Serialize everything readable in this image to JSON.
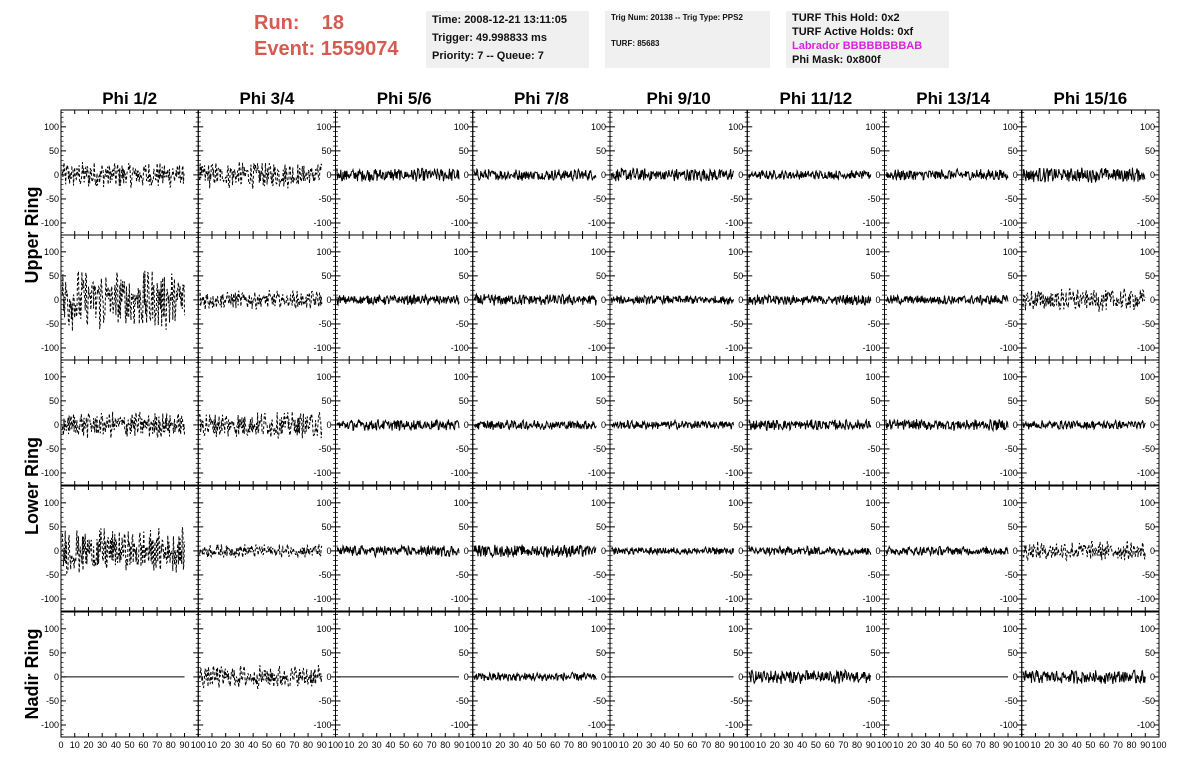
{
  "header": {
    "run_label": "Run:",
    "run_value": "18",
    "event_label": "Event:",
    "event_value": "1559074",
    "time": "Time: 2008-12-21 13:11:05",
    "trigger": "Trigger: 49.998833 ms",
    "priority": "Priority: 7 -- Queue: 7",
    "trig_num": "Trig Num: 20138 -- Trig Type: PPS2",
    "turf": "TURF: 85683",
    "turf_hold": "TURF This Hold: 0x2",
    "turf_active": "TURF Active Holds: 0xf",
    "labrador": "Labrador BBBBBBBBAB",
    "phi_mask": "Phi Mask: 0x800f",
    "labrador_color": "#e020e0",
    "run_color": "#d55b50"
  },
  "chart_data": {
    "type": "line",
    "columns": [
      "Phi 1/2",
      "Phi 3/4",
      "Phi 5/6",
      "Phi 7/8",
      "Phi 9/10",
      "Phi 11/12",
      "Phi 13/14",
      "Phi 15/16"
    ],
    "rows": [
      "Upper Ring",
      "Upper Ring",
      "Lower Ring",
      "Lower Ring",
      "Nadir Ring"
    ],
    "ring_labels": [
      "Upper Ring",
      "Lower Ring",
      "Nadir Ring"
    ],
    "xlim": [
      0,
      100
    ],
    "ylim": [
      -125,
      135
    ],
    "x_ticks": [
      0,
      10,
      20,
      30,
      40,
      50,
      60,
      70,
      80,
      90,
      100
    ],
    "y_ticks": [
      -100,
      -50,
      0,
      50,
      100
    ],
    "panels": [
      [
        {
          "amp": 35,
          "style": "dashed"
        },
        {
          "amp": 35,
          "style": "dashed"
        },
        {
          "amp": 18,
          "style": "solid"
        },
        {
          "amp": 15,
          "style": "solid"
        },
        {
          "amp": 18,
          "style": "solid"
        },
        {
          "amp": 12,
          "style": "solid"
        },
        {
          "amp": 15,
          "style": "solid"
        },
        {
          "amp": 20,
          "style": "solid"
        }
      ],
      [
        {
          "amp": 80,
          "style": "dashed"
        },
        {
          "amp": 25,
          "style": "dashed"
        },
        {
          "amp": 13,
          "style": "solid"
        },
        {
          "amp": 15,
          "style": "solid"
        },
        {
          "amp": 12,
          "style": "solid"
        },
        {
          "amp": 14,
          "style": "solid"
        },
        {
          "amp": 13,
          "style": "solid"
        },
        {
          "amp": 30,
          "style": "dashed"
        }
      ],
      [
        {
          "amp": 35,
          "style": "dashed"
        },
        {
          "amp": 35,
          "style": "dashed"
        },
        {
          "amp": 15,
          "style": "solid"
        },
        {
          "amp": 13,
          "style": "solid"
        },
        {
          "amp": 12,
          "style": "solid"
        },
        {
          "amp": 14,
          "style": "solid"
        },
        {
          "amp": 15,
          "style": "solid"
        },
        {
          "amp": 12,
          "style": "solid"
        }
      ],
      [
        {
          "amp": 60,
          "style": "dashed"
        },
        {
          "amp": 18,
          "style": "dashed"
        },
        {
          "amp": 15,
          "style": "solid"
        },
        {
          "amp": 17,
          "style": "solid"
        },
        {
          "amp": 10,
          "style": "solid"
        },
        {
          "amp": 12,
          "style": "solid"
        },
        {
          "amp": 12,
          "style": "solid"
        },
        {
          "amp": 25,
          "style": "dashed"
        }
      ],
      [
        {
          "amp": 0,
          "style": "solid"
        },
        {
          "amp": 30,
          "style": "dashed"
        },
        {
          "amp": 0,
          "style": "solid"
        },
        {
          "amp": 12,
          "style": "solid"
        },
        {
          "amp": 0,
          "style": "solid"
        },
        {
          "amp": 18,
          "style": "solid"
        },
        {
          "amp": 0,
          "style": "solid"
        },
        {
          "amp": 18,
          "style": "solid"
        }
      ]
    ]
  }
}
